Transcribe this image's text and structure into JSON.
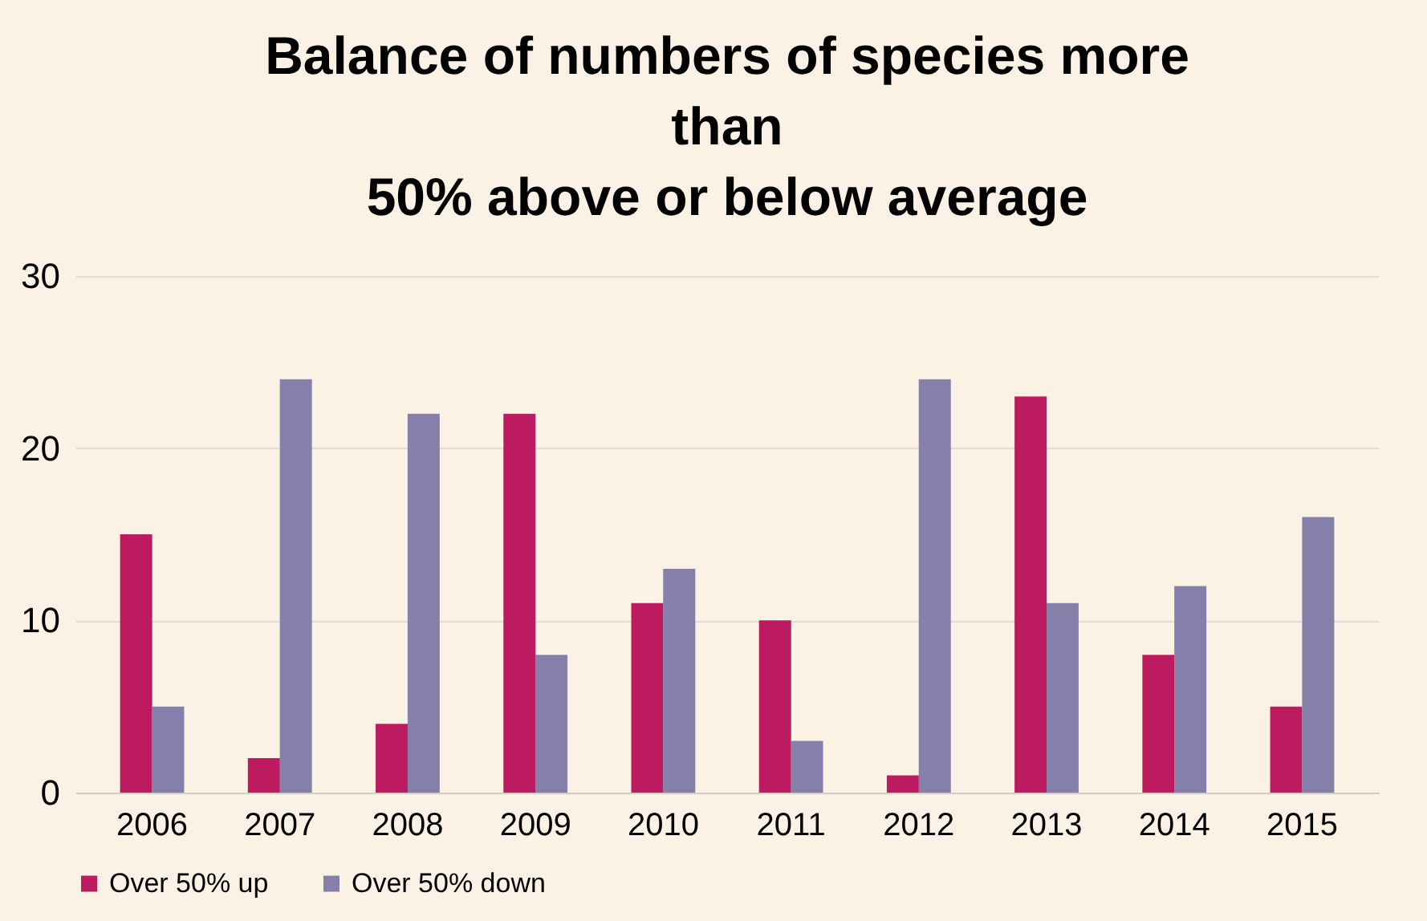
{
  "chart_data": {
    "type": "bar",
    "title": "Balance of numbers of species more\nthan\n50% above or below average",
    "categories": [
      "2006",
      "2007",
      "2008",
      "2009",
      "2010",
      "2011",
      "2012",
      "2013",
      "2014",
      "2015"
    ],
    "series": [
      {
        "name": "Over 50% up",
        "color": "#bc1c5f",
        "values": [
          15,
          2,
          4,
          22,
          11,
          10,
          1,
          23,
          8,
          5
        ]
      },
      {
        "name": "Over 50% down",
        "color": "#8580aa",
        "values": [
          5,
          24,
          22,
          8,
          13,
          3,
          24,
          11,
          12,
          16
        ]
      }
    ],
    "ylim": [
      0,
      30
    ],
    "yticks": [
      0,
      10,
      20,
      30
    ],
    "grid": "y",
    "legend": "bottom"
  }
}
